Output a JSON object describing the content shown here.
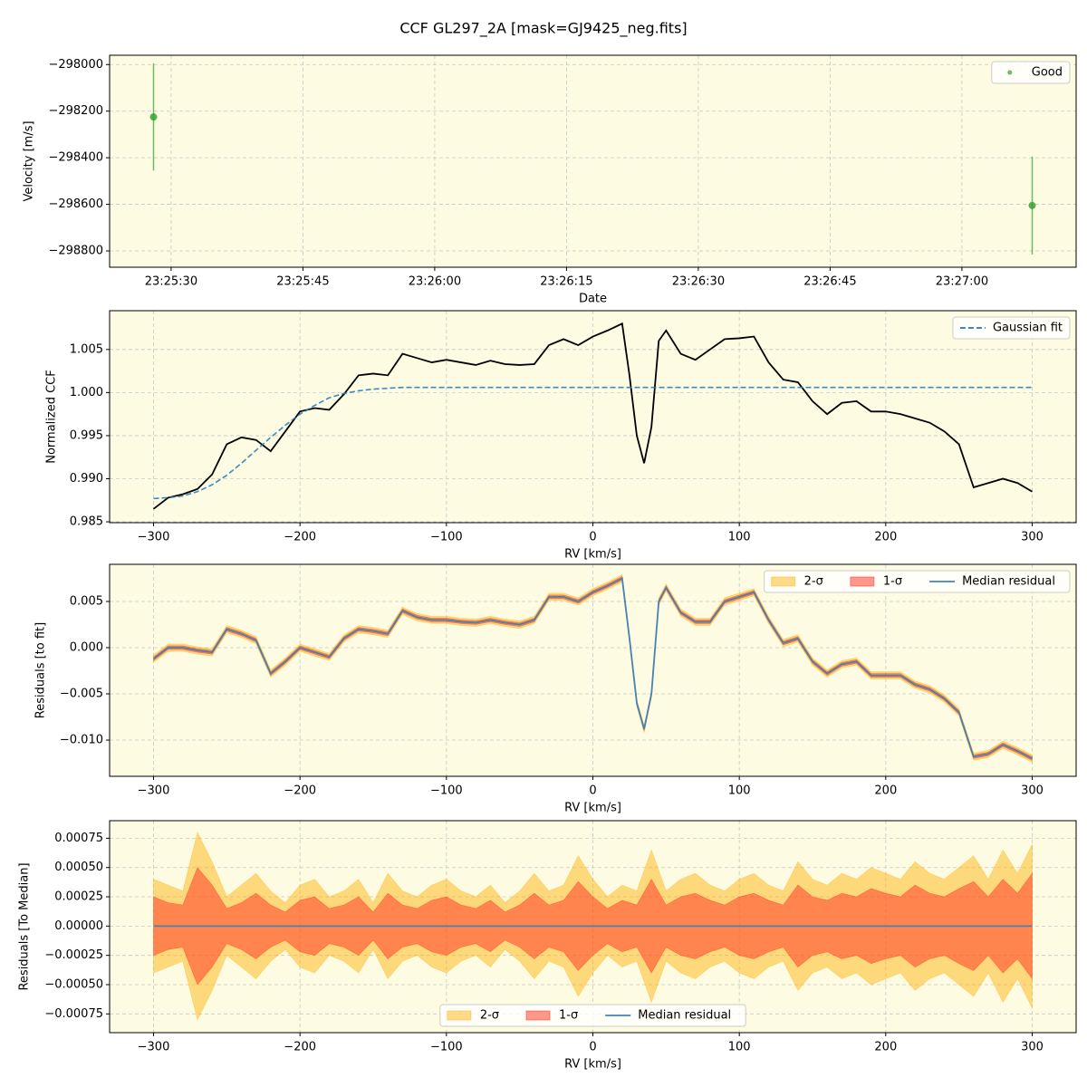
{
  "title": "CCF GL297_2A [mask=GJ9425_neg.fits]",
  "chart_data": [
    {
      "type": "scatter",
      "xlabel": "Date",
      "ylabel": "Velocity [m/s]",
      "x": [
        "23:25:28",
        "23:27:08"
      ],
      "series": [
        {
          "name": "Good",
          "color": "#2ca02c",
          "values": [
            -298225,
            -298605
          ],
          "errors": [
            230,
            210
          ]
        }
      ],
      "xlim": [
        "23:25:23",
        "23:27:13"
      ],
      "xticks": [
        "23:25:30",
        "23:25:45",
        "23:26:00",
        "23:26:15",
        "23:26:30",
        "23:26:45",
        "23:27:00"
      ],
      "ylim": [
        -298870,
        -297960
      ],
      "yticks": [
        {
          "value": -298800,
          "label": "−298800"
        },
        {
          "value": -298600,
          "label": "−298600"
        },
        {
          "value": -298400,
          "label": "−298400"
        },
        {
          "value": -298200,
          "label": "−298200"
        },
        {
          "value": -298000,
          "label": "−298000"
        }
      ],
      "grid": true,
      "legend": "upper right"
    },
    {
      "type": "line",
      "xlabel": "RV [km/s]",
      "ylabel": "Normalized CCF",
      "x": [
        -300,
        -290,
        -280,
        -270,
        -260,
        -250,
        -240,
        -230,
        -220,
        -210,
        -200,
        -190,
        -180,
        -170,
        -160,
        -150,
        -140,
        -130,
        -120,
        -110,
        -100,
        -90,
        -80,
        -70,
        -60,
        -50,
        -40,
        -30,
        -20,
        -10,
        0,
        10,
        20,
        25,
        30,
        35,
        40,
        45,
        50,
        60,
        70,
        80,
        90,
        100,
        110,
        120,
        130,
        140,
        150,
        160,
        170,
        180,
        190,
        200,
        210,
        220,
        230,
        240,
        250,
        260,
        270,
        280,
        290,
        300
      ],
      "series": [
        {
          "color": "#000000",
          "values": [
            0.9865,
            0.9878,
            0.9882,
            0.9888,
            0.9905,
            0.994,
            0.9948,
            0.9945,
            0.9932,
            0.9955,
            0.9978,
            0.9982,
            0.998,
            0.9998,
            1.002,
            1.0022,
            1.002,
            1.0045,
            1.004,
            1.0035,
            1.0038,
            1.0035,
            1.0032,
            1.0037,
            1.0033,
            1.0032,
            1.0033,
            1.0055,
            1.0062,
            1.0055,
            1.0065,
            1.0072,
            1.008,
            1.002,
            0.995,
            0.9918,
            0.996,
            1.006,
            1.0072,
            1.0045,
            1.0038,
            1.005,
            1.0062,
            1.0063,
            1.0065,
            1.0035,
            1.0015,
            1.0012,
            0.999,
            0.9975,
            0.9988,
            0.999,
            0.9978,
            0.9978,
            0.9975,
            0.997,
            0.9965,
            0.9955,
            0.994,
            0.989,
            0.9895,
            0.99,
            0.9895,
            0.9885
          ]
        },
        {
          "name": "Gaussian fit",
          "color": "#1f77b4",
          "dash": true,
          "values": [
            0.9877,
            0.9878,
            0.988,
            0.9885,
            0.9893,
            0.9904,
            0.9918,
            0.9933,
            0.9948,
            0.9962,
            0.9975,
            0.9985,
            0.9994,
            0.9999,
            1.0002,
            1.0004,
            1.0005,
            1.0006,
            1.0006,
            1.0006,
            1.0006,
            1.0006,
            1.0006,
            1.0006,
            1.0006,
            1.0006,
            1.0006,
            1.0006,
            1.0006,
            1.0006,
            1.0006,
            1.0006,
            1.0006,
            1.0006,
            1.0006,
            1.0006,
            1.0006,
            1.0006,
            1.0006,
            1.0006,
            1.0006,
            1.0006,
            1.0006,
            1.0006,
            1.0006,
            1.0006,
            1.0006,
            1.0006,
            1.0006,
            1.0006,
            1.0006,
            1.0006,
            1.0006,
            1.0006,
            1.0006,
            1.0006,
            1.0006,
            1.0006,
            1.0006,
            1.0006,
            1.0006,
            1.0006,
            1.0006,
            1.0006
          ]
        }
      ],
      "xlim": [
        -330,
        330
      ],
      "xticks": [
        {
          "value": -300,
          "label": "−300"
        },
        {
          "value": -200,
          "label": "−200"
        },
        {
          "value": -100,
          "label": "−100"
        },
        0,
        100,
        200,
        300
      ],
      "ylim": [
        0.9849,
        1.0095
      ],
      "yticks": [
        {
          "value": 0.985,
          "label": "0.985"
        },
        {
          "value": 0.99,
          "label": "0.990"
        },
        {
          "value": 0.995,
          "label": "0.995"
        },
        {
          "value": 1.0,
          "label": "1.000"
        },
        {
          "value": 1.005,
          "label": "1.005"
        }
      ],
      "grid": true,
      "legend": "upper right"
    },
    {
      "type": "line",
      "xlabel": "RV [km/s]",
      "ylabel": "Residuals [to fit]",
      "x": [
        -300,
        -290,
        -280,
        -270,
        -260,
        -250,
        -240,
        -230,
        -220,
        -210,
        -200,
        -190,
        -180,
        -170,
        -160,
        -150,
        -140,
        -130,
        -120,
        -110,
        -100,
        -90,
        -80,
        -70,
        -60,
        -50,
        -40,
        -30,
        -20,
        -10,
        0,
        10,
        20,
        25,
        30,
        35,
        40,
        45,
        50,
        60,
        70,
        80,
        90,
        100,
        110,
        120,
        130,
        140,
        150,
        160,
        170,
        180,
        190,
        200,
        210,
        220,
        230,
        240,
        250,
        260,
        270,
        280,
        290,
        300
      ],
      "series": [
        {
          "name": "2-σ",
          "style": "band",
          "color": "#ffb000",
          "alpha": 0.45,
          "values": [
            0.0004,
            0.0004,
            0.0004,
            0.0004,
            0.0004,
            0.0004,
            0.0004,
            0.0004,
            0.0004,
            0.0004,
            0.0004,
            0.0004,
            0.0004,
            0.0004,
            0.0004,
            0.0004,
            0.0004,
            0.0004,
            0.0004,
            0.0004,
            0.0004,
            0.0004,
            0.0004,
            0.0004,
            0.0004,
            0.0004,
            0.0004,
            0.0004,
            0.0004,
            0.0004,
            0.0004,
            0.0004,
            0.0004,
            0.0004,
            0.0004,
            0.0004,
            0.0004,
            0.0004,
            0.0004,
            0.0004,
            0.0004,
            0.0004,
            0.0004,
            0.0004,
            0.0004,
            0.0004,
            0.0004,
            0.0004,
            0.0004,
            0.0004,
            0.0004,
            0.0004,
            0.0004,
            0.0004,
            0.0004,
            0.0004,
            0.0004,
            0.0004,
            0.0004,
            0.0004,
            0.0004,
            0.0004,
            0.0004,
            0.0004
          ]
        },
        {
          "name": "1-σ",
          "style": "band",
          "color": "#ff3020",
          "alpha": 0.5,
          "values": [
            0.0002,
            0.0002,
            0.0002,
            0.0002,
            0.0002,
            0.0002,
            0.0002,
            0.0002,
            0.0002,
            0.0002,
            0.0002,
            0.0002,
            0.0002,
            0.0002,
            0.0002,
            0.0002,
            0.0002,
            0.0002,
            0.0002,
            0.0002,
            0.0002,
            0.0002,
            0.0002,
            0.0002,
            0.0002,
            0.0002,
            0.0002,
            0.0002,
            0.0002,
            0.0002,
            0.0002,
            0.0002,
            0.0002,
            0.0002,
            0.0002,
            0.0002,
            0.0002,
            0.0002,
            0.0002,
            0.0002,
            0.0002,
            0.0002,
            0.0002,
            0.0002,
            0.0002,
            0.0002,
            0.0002,
            0.0002,
            0.0002,
            0.0002,
            0.0002,
            0.0002,
            0.0002,
            0.0002,
            0.0002,
            0.0002,
            0.0002,
            0.0002,
            0.0002,
            0.0002,
            0.0002,
            0.0002,
            0.0002,
            0.0002
          ]
        },
        {
          "name": "Median residual",
          "color": "#4682b4",
          "values": [
            -0.0012,
            0,
            0,
            -0.0003,
            -0.0005,
            0.002,
            0.0015,
            0.0008,
            -0.0028,
            -0.0015,
            0,
            -0.0005,
            -0.001,
            0.001,
            0.002,
            0.0018,
            0.0015,
            0.004,
            0.0033,
            0.003,
            0.003,
            0.0028,
            0.0027,
            0.003,
            0.0027,
            0.0025,
            0.003,
            0.0055,
            0.0055,
            0.005,
            0.006,
            0.0067,
            0.0075,
            0.001,
            -0.006,
            -0.0088,
            -0.005,
            0.005,
            0.0065,
            0.0038,
            0.0028,
            0.0028,
            0.005,
            0.0055,
            0.006,
            0.003,
            0.0005,
            0.001,
            -0.0015,
            -0.0028,
            -0.0018,
            -0.0015,
            -0.003,
            -0.003,
            -0.003,
            -0.004,
            -0.0045,
            -0.0055,
            -0.007,
            -0.0118,
            -0.0115,
            -0.0105,
            -0.0112,
            -0.012
          ]
        }
      ],
      "xlim": [
        -330,
        330
      ],
      "xticks": [
        {
          "value": -300,
          "label": "−300"
        },
        {
          "value": -200,
          "label": "−200"
        },
        {
          "value": -100,
          "label": "−100"
        },
        0,
        100,
        200,
        300
      ],
      "ylim": [
        -0.01392,
        0.00902
      ],
      "yticks": [
        {
          "value": -0.01,
          "label": "−0.010"
        },
        {
          "value": -0.005,
          "label": "−0.005"
        },
        {
          "value": 0,
          "label": "0.000"
        },
        {
          "value": 0.005,
          "label": "0.005"
        }
      ],
      "grid": true,
      "legend": "upper right",
      "legend_ncol": 3
    },
    {
      "type": "line",
      "xlabel": "RV [km/s]",
      "ylabel": "Residuals [To Median]",
      "x": [
        -300,
        -290,
        -280,
        -270,
        -260,
        -250,
        -240,
        -230,
        -220,
        -210,
        -200,
        -190,
        -180,
        -170,
        -160,
        -150,
        -140,
        -130,
        -120,
        -110,
        -100,
        -90,
        -80,
        -70,
        -60,
        -50,
        -40,
        -30,
        -20,
        -10,
        0,
        10,
        20,
        30,
        40,
        50,
        60,
        70,
        80,
        90,
        100,
        110,
        120,
        130,
        140,
        150,
        160,
        170,
        180,
        190,
        200,
        210,
        220,
        230,
        240,
        250,
        260,
        270,
        280,
        290,
        300
      ],
      "series": [
        {
          "name": "2-σ",
          "style": "band",
          "color": "#ffb000",
          "alpha": 0.45,
          "values": [
            0.0004,
            0.00035,
            0.0003,
            0.0008,
            0.00055,
            0.00025,
            0.00035,
            0.00045,
            0.0003,
            0.0002,
            0.00035,
            0.0004,
            0.00025,
            0.0003,
            0.0004,
            0.0002,
            0.00045,
            0.0003,
            0.00025,
            0.00035,
            0.0004,
            0.0003,
            0.00025,
            0.00035,
            0.0002,
            0.0003,
            0.00045,
            0.0003,
            0.00035,
            0.0006,
            0.0004,
            0.00025,
            0.00035,
            0.0003,
            0.00065,
            0.0003,
            0.0004,
            0.00045,
            0.00035,
            0.0003,
            0.0004,
            0.00045,
            0.00035,
            0.0003,
            0.00055,
            0.0004,
            0.00035,
            0.00045,
            0.0004,
            0.0005,
            0.00045,
            0.0004,
            0.00055,
            0.00045,
            0.0004,
            0.0005,
            0.0006,
            0.0004,
            0.00065,
            0.00045,
            0.0007
          ]
        },
        {
          "name": "1-σ",
          "style": "band",
          "color": "#ff3020",
          "alpha": 0.5,
          "values": [
            0.00025,
            0.0002,
            0.00018,
            0.0005,
            0.00035,
            0.00015,
            0.0002,
            0.00028,
            0.00018,
            0.00012,
            0.00022,
            0.00025,
            0.00015,
            0.00018,
            0.00025,
            0.00012,
            0.00028,
            0.00018,
            0.00015,
            0.00022,
            0.00025,
            0.00018,
            0.00015,
            0.00022,
            0.00012,
            0.00018,
            0.00028,
            0.00018,
            0.00022,
            0.00038,
            0.00025,
            0.00015,
            0.00022,
            0.00018,
            0.0004,
            0.00018,
            0.00025,
            0.00028,
            0.00022,
            0.00018,
            0.00025,
            0.00028,
            0.00022,
            0.00018,
            0.00035,
            0.00025,
            0.00022,
            0.00028,
            0.00025,
            0.00032,
            0.00028,
            0.00025,
            0.00035,
            0.00028,
            0.00025,
            0.00032,
            0.00038,
            0.00025,
            0.0004,
            0.00028,
            0.00045
          ]
        },
        {
          "name": "Median residual",
          "color": "#4682b4",
          "values": [
            0,
            0,
            0,
            0,
            0,
            0,
            0,
            0,
            0,
            0,
            0,
            0,
            0,
            0,
            0,
            0,
            0,
            0,
            0,
            0,
            0,
            0,
            0,
            0,
            0,
            0,
            0,
            0,
            0,
            0,
            0,
            0,
            0,
            0,
            0,
            0,
            0,
            0,
            0,
            0,
            0,
            0,
            0,
            0,
            0,
            0,
            0,
            0,
            0,
            0,
            0,
            0,
            0,
            0,
            0,
            0,
            0,
            0,
            0,
            0,
            0
          ]
        }
      ],
      "xlim": [
        -330,
        330
      ],
      "xticks": [
        {
          "value": -300,
          "label": "−300"
        },
        {
          "value": -200,
          "label": "−200"
        },
        {
          "value": -100,
          "label": "−100"
        },
        0,
        100,
        200,
        300
      ],
      "ylim": [
        -0.00091,
        0.0009
      ],
      "yticks": [
        {
          "value": -0.00075,
          "label": "−0.00075"
        },
        {
          "value": -0.0005,
          "label": "−0.00050"
        },
        {
          "value": -0.00025,
          "label": "−0.00025"
        },
        {
          "value": 0,
          "label": "0.00000"
        },
        {
          "value": 0.00025,
          "label": "0.00025"
        },
        {
          "value": 0.0005,
          "label": "0.00050"
        },
        {
          "value": 0.00075,
          "label": "0.00075"
        }
      ],
      "grid": true,
      "legend": "lower center",
      "legend_ncol": 3
    }
  ]
}
